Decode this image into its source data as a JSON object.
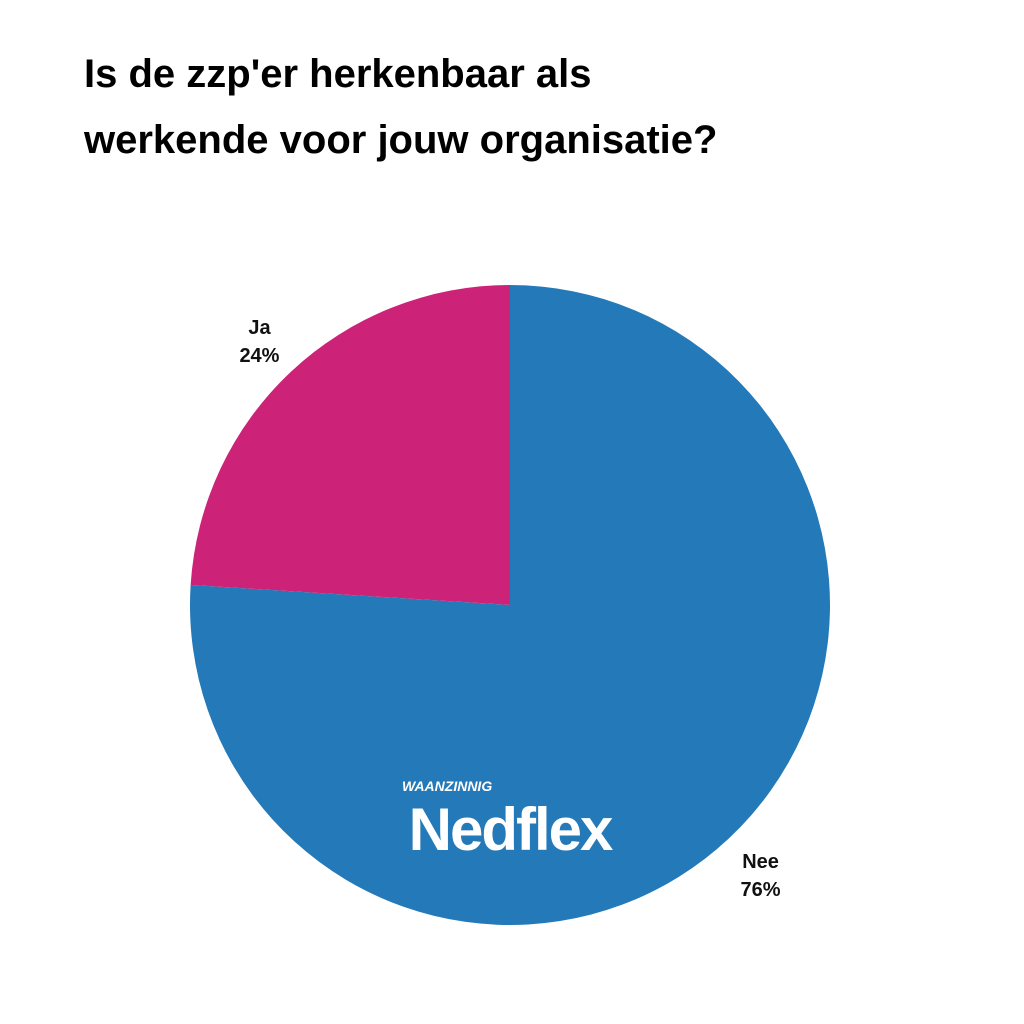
{
  "chart_data": {
    "type": "pie",
    "title": [
      "Is de zzp'er herkenbaar als",
      "werkende voor jouw organisatie?"
    ],
    "categories": [
      "Nee",
      "Ja"
    ],
    "values": [
      76,
      24
    ],
    "value_labels": [
      "76%",
      "24%"
    ],
    "colors": [
      "#2479b8",
      "#cc2277"
    ],
    "logo": {
      "tagline": "WAANZINNIG",
      "name": "Nedflex"
    }
  }
}
